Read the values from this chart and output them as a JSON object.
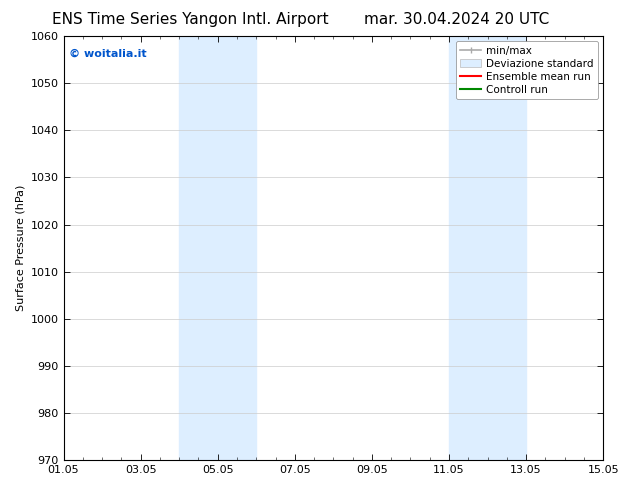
{
  "title_left": "ENS Time Series Yangon Intl. Airport",
  "title_right": "mar. 30.04.2024 20 UTC",
  "ylabel": "Surface Pressure (hPa)",
  "ylim": [
    970,
    1060
  ],
  "yticks": [
    970,
    980,
    990,
    1000,
    1010,
    1020,
    1030,
    1040,
    1050,
    1060
  ],
  "xtick_labels": [
    "01.05",
    "03.05",
    "05.05",
    "07.05",
    "09.05",
    "11.05",
    "13.05",
    "15.05"
  ],
  "xtick_positions": [
    0,
    2,
    4,
    6,
    8,
    10,
    12,
    14
  ],
  "shaded_bands": [
    {
      "x_start": 3,
      "x_end": 5
    },
    {
      "x_start": 10,
      "x_end": 12
    }
  ],
  "shaded_color": "#ddeeff",
  "bg_color": "#ffffff",
  "watermark_text": "© woitalia.it",
  "watermark_color": "#0055cc",
  "legend_entries": [
    {
      "label": "min/max",
      "color": "#aaaaaa",
      "lw": 1.2
    },
    {
      "label": "Deviazione standard",
      "color": "#ddeeff",
      "lw": 8
    },
    {
      "label": "Ensemble mean run",
      "color": "#ff0000",
      "lw": 1.5
    },
    {
      "label": "Controll run",
      "color": "#008800",
      "lw": 1.5
    }
  ],
  "title_fontsize": 11,
  "axis_fontsize": 8,
  "tick_fontsize": 8,
  "legend_fontsize": 7.5,
  "watermark_fontsize": 8
}
